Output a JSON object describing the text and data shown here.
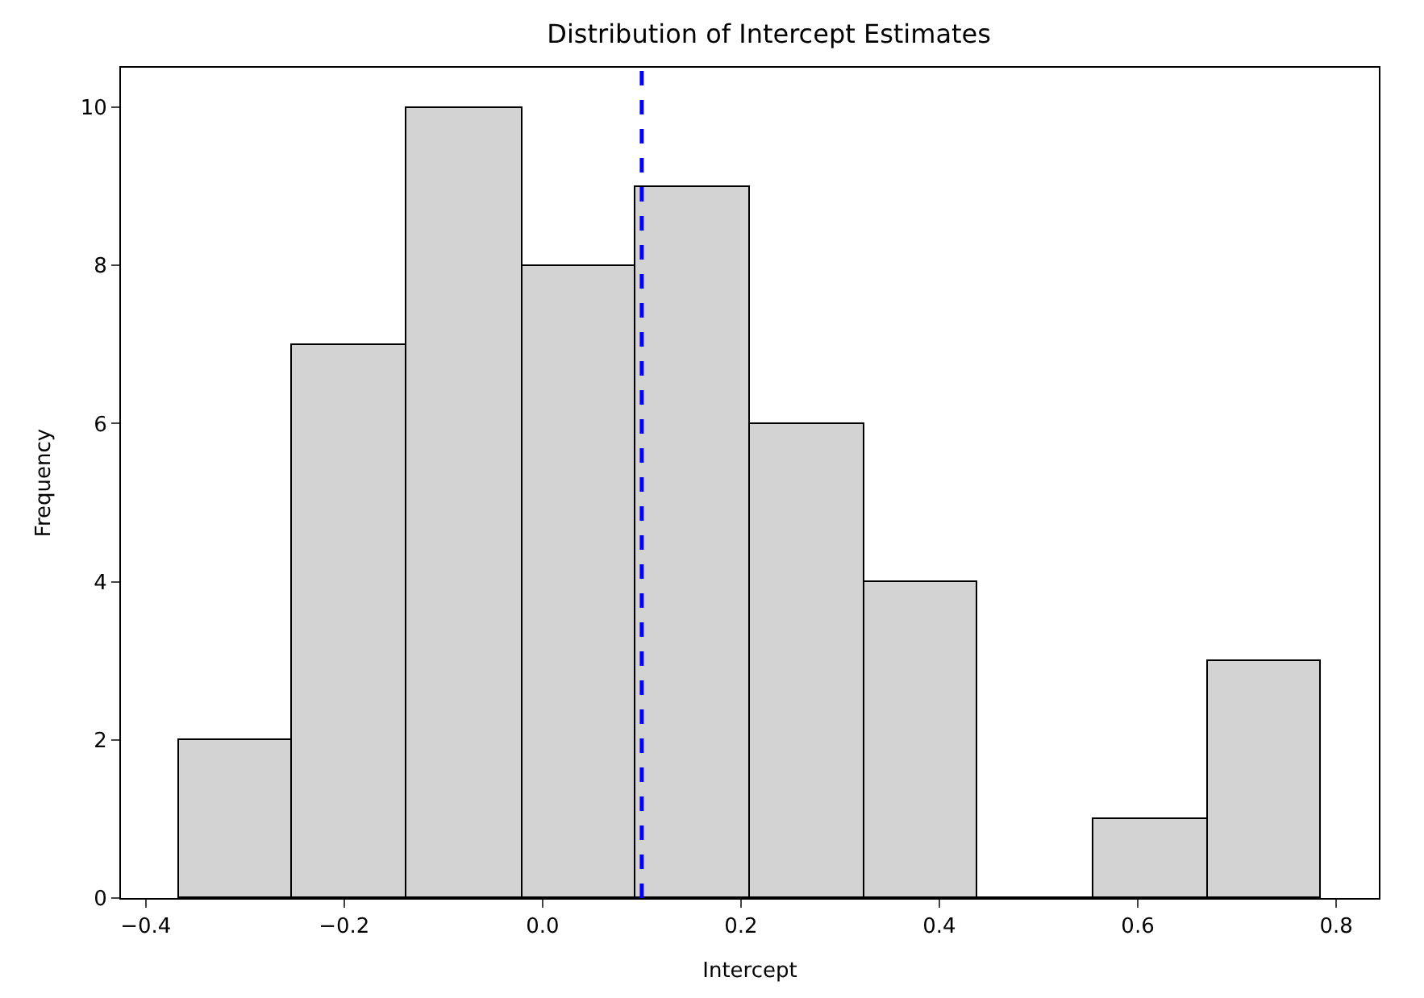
{
  "chart_data": {
    "type": "histogram",
    "title": "Distribution of Intercept Estimates",
    "xlabel": "Intercept",
    "ylabel": "Frequency",
    "bins": [
      -0.367,
      -0.252,
      -0.137,
      -0.021,
      0.094,
      0.209,
      0.324,
      0.439,
      0.555,
      0.67,
      0.785
    ],
    "values": [
      2,
      7,
      10,
      8,
      9,
      6,
      4,
      0,
      1,
      3
    ],
    "color": "#d3d3d3",
    "xlim": [
      -0.425,
      0.843
    ],
    "xticks": [
      {
        "value": -0.4,
        "label": "−0.4"
      },
      {
        "value": -0.2,
        "label": "−0.2"
      },
      {
        "value": 0.0,
        "label": "0.0"
      },
      {
        "value": 0.2,
        "label": "0.2"
      },
      {
        "value": 0.4,
        "label": "0.4"
      },
      {
        "value": 0.6,
        "label": "0.6"
      },
      {
        "value": 0.8,
        "label": "0.8"
      }
    ],
    "ylim": [
      0,
      10.5
    ],
    "yticks": [
      0,
      2,
      4,
      6,
      8,
      10
    ],
    "ref_lines": [
      {
        "axis": "x",
        "value": 0.1,
        "label": null,
        "color": "#0000ff",
        "line_style": "dashed"
      }
    ]
  }
}
